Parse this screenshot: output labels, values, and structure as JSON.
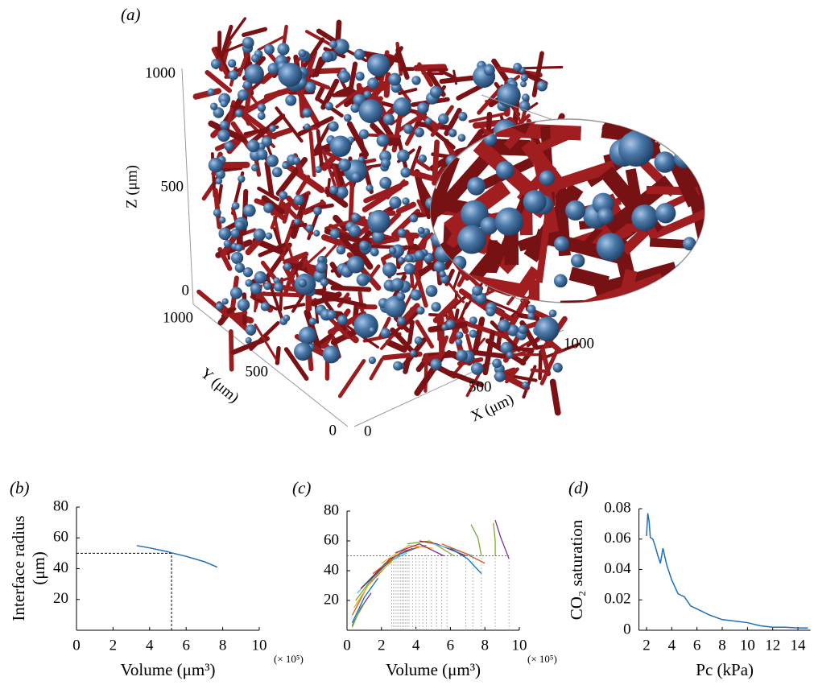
{
  "panel_a": {
    "panel_label": "(a)",
    "zlabel": "Z (μm)",
    "ylabel": "Y (μm)",
    "xlabel": "X (μm)",
    "zticks": [
      0,
      500,
      1000
    ],
    "yticks": [
      0,
      500,
      1000
    ],
    "xticks": [
      0,
      500,
      1000
    ]
  },
  "chart_data": [
    {
      "type": "line",
      "panel_label": "(b)",
      "xlabel": "Volume (μm³)",
      "x_multiplier": "(× 10⁵)",
      "ylabel": [
        "Interface radius",
        "(μm)"
      ],
      "color": "#1f6fb4",
      "x": [
        3.3,
        4.0,
        5.0,
        5.2,
        6.0,
        7.0,
        7.7
      ],
      "values": [
        55,
        53.5,
        51,
        50.3,
        48,
        44.5,
        41
      ],
      "reference": {
        "x": 5.2,
        "y": 50
      },
      "xlim": [
        0,
        10
      ],
      "xticks": [
        0,
        2,
        4,
        6,
        8,
        10
      ],
      "ylim": [
        0,
        80
      ],
      "yticks": [
        20,
        40,
        60,
        80
      ]
    },
    {
      "type": "multiline",
      "panel_label": "(c)",
      "xlabel": "Volume (μm³)",
      "x_multiplier": "(× 10⁵)",
      "series": [
        {
          "color": "#0072bd",
          "x": [
            0.3,
            1.0,
            1.8
          ],
          "values": [
            5,
            22,
            35
          ]
        },
        {
          "color": "#d95319",
          "x": [
            0.3,
            1.2,
            2.2
          ],
          "values": [
            10,
            30,
            42
          ]
        },
        {
          "color": "#edb120",
          "x": [
            0.4,
            1.5,
            2.6
          ],
          "values": [
            15,
            35,
            46
          ]
        },
        {
          "color": "#7e2f8e",
          "x": [
            0.3,
            0.8,
            1.4
          ],
          "values": [
            3,
            15,
            25
          ]
        },
        {
          "color": "#77ac30",
          "x": [
            0.5,
            1.8,
            3.0
          ],
          "values": [
            20,
            40,
            50
          ]
        },
        {
          "color": "#4dbeee",
          "x": [
            0.6,
            2.2,
            3.5
          ],
          "values": [
            25,
            45,
            52
          ]
        },
        {
          "color": "#a2142f",
          "x": [
            0.8,
            2.5,
            3.8
          ],
          "values": [
            28,
            48,
            55
          ]
        },
        {
          "color": "#0072bd",
          "x": [
            1.0,
            2.8,
            4.2
          ],
          "values": [
            30,
            50,
            56
          ]
        },
        {
          "color": "#d95319",
          "x": [
            1.5,
            3.2,
            4.6
          ],
          "values": [
            38,
            53,
            57
          ]
        },
        {
          "color": "#edb120",
          "x": [
            2.0,
            3.6,
            5.0
          ],
          "values": [
            45,
            57,
            55
          ]
        },
        {
          "color": "#7e2f8e",
          "x": [
            2.8,
            4.2,
            5.6
          ],
          "values": [
            52,
            58,
            50
          ]
        },
        {
          "color": "#77ac30",
          "x": [
            3.5,
            4.8,
            6.2
          ],
          "values": [
            58,
            60,
            50
          ]
        },
        {
          "color": "#a2142f",
          "x": [
            4.2,
            5.2,
            6.9
          ],
          "values": [
            60,
            58,
            50
          ]
        },
        {
          "color": "#4dbeee",
          "x": [
            5.0,
            6.0,
            7.3
          ],
          "values": [
            58,
            55,
            50
          ]
        },
        {
          "color": "#0072bd",
          "x": [
            6.0,
            7.0,
            7.8
          ],
          "values": [
            55,
            48,
            38
          ]
        },
        {
          "color": "#d95319",
          "x": [
            5.5,
            6.8,
            8.0
          ],
          "values": [
            58,
            52,
            45
          ]
        },
        {
          "color": "#77ac30",
          "x": [
            7.2,
            7.6,
            7.8
          ],
          "values": [
            71,
            62,
            50
          ]
        },
        {
          "color": "#7e2f8e",
          "x": [
            8.6,
            8.9,
            9.4
          ],
          "values": [
            74,
            63,
            48
          ]
        },
        {
          "color": "#77ac30",
          "x": [
            8.5,
            8.6,
            8.6
          ],
          "values": [
            72,
            60,
            50
          ]
        },
        {
          "color": "#77ac30",
          "x": [
            0.3,
            0.6,
            1.0
          ],
          "values": [
            2,
            10,
            18
          ]
        }
      ],
      "reference_y": 50,
      "reference_x": [
        2.6,
        2.7,
        2.8,
        2.9,
        3.0,
        3.1,
        3.2,
        3.3,
        3.4,
        3.5,
        3.6,
        3.8,
        4.0,
        4.2,
        4.4,
        4.6,
        4.9,
        5.2,
        5.5,
        5.8,
        6.9,
        7.3,
        7.8,
        8.6,
        9.4
      ],
      "xlim": [
        0,
        10
      ],
      "xticks": [
        0,
        2,
        4,
        6,
        8,
        10
      ],
      "ylim": [
        0,
        80
      ],
      "yticks": [
        20,
        40,
        60,
        80
      ]
    },
    {
      "type": "line",
      "panel_label": "(d)",
      "xlabel": "Pc (kPa)",
      "ylabel": "CO₂ saturation",
      "color": "#1f6fb4",
      "x": [
        2.0,
        2.1,
        2.2,
        2.3,
        2.5,
        2.7,
        2.9,
        3.1,
        3.3,
        3.6,
        4.0,
        4.5,
        5.0,
        5.5,
        6.0,
        7.0,
        8.0,
        9.0,
        10.0,
        11.0,
        12.0,
        13.0,
        14.0,
        14.8
      ],
      "values": [
        0.062,
        0.077,
        0.072,
        0.061,
        0.06,
        0.055,
        0.049,
        0.044,
        0.054,
        0.043,
        0.033,
        0.024,
        0.022,
        0.016,
        0.014,
        0.01,
        0.007,
        0.006,
        0.005,
        0.003,
        0.002,
        0.002,
        0.0015,
        0.0015
      ],
      "xlim": [
        1.4,
        15
      ],
      "xticks": [
        2,
        4,
        6,
        8,
        10,
        12,
        14
      ],
      "ylim": [
        0,
        0.08
      ],
      "yticks": [
        0,
        0.02,
        0.04,
        0.06,
        0.08
      ]
    }
  ]
}
